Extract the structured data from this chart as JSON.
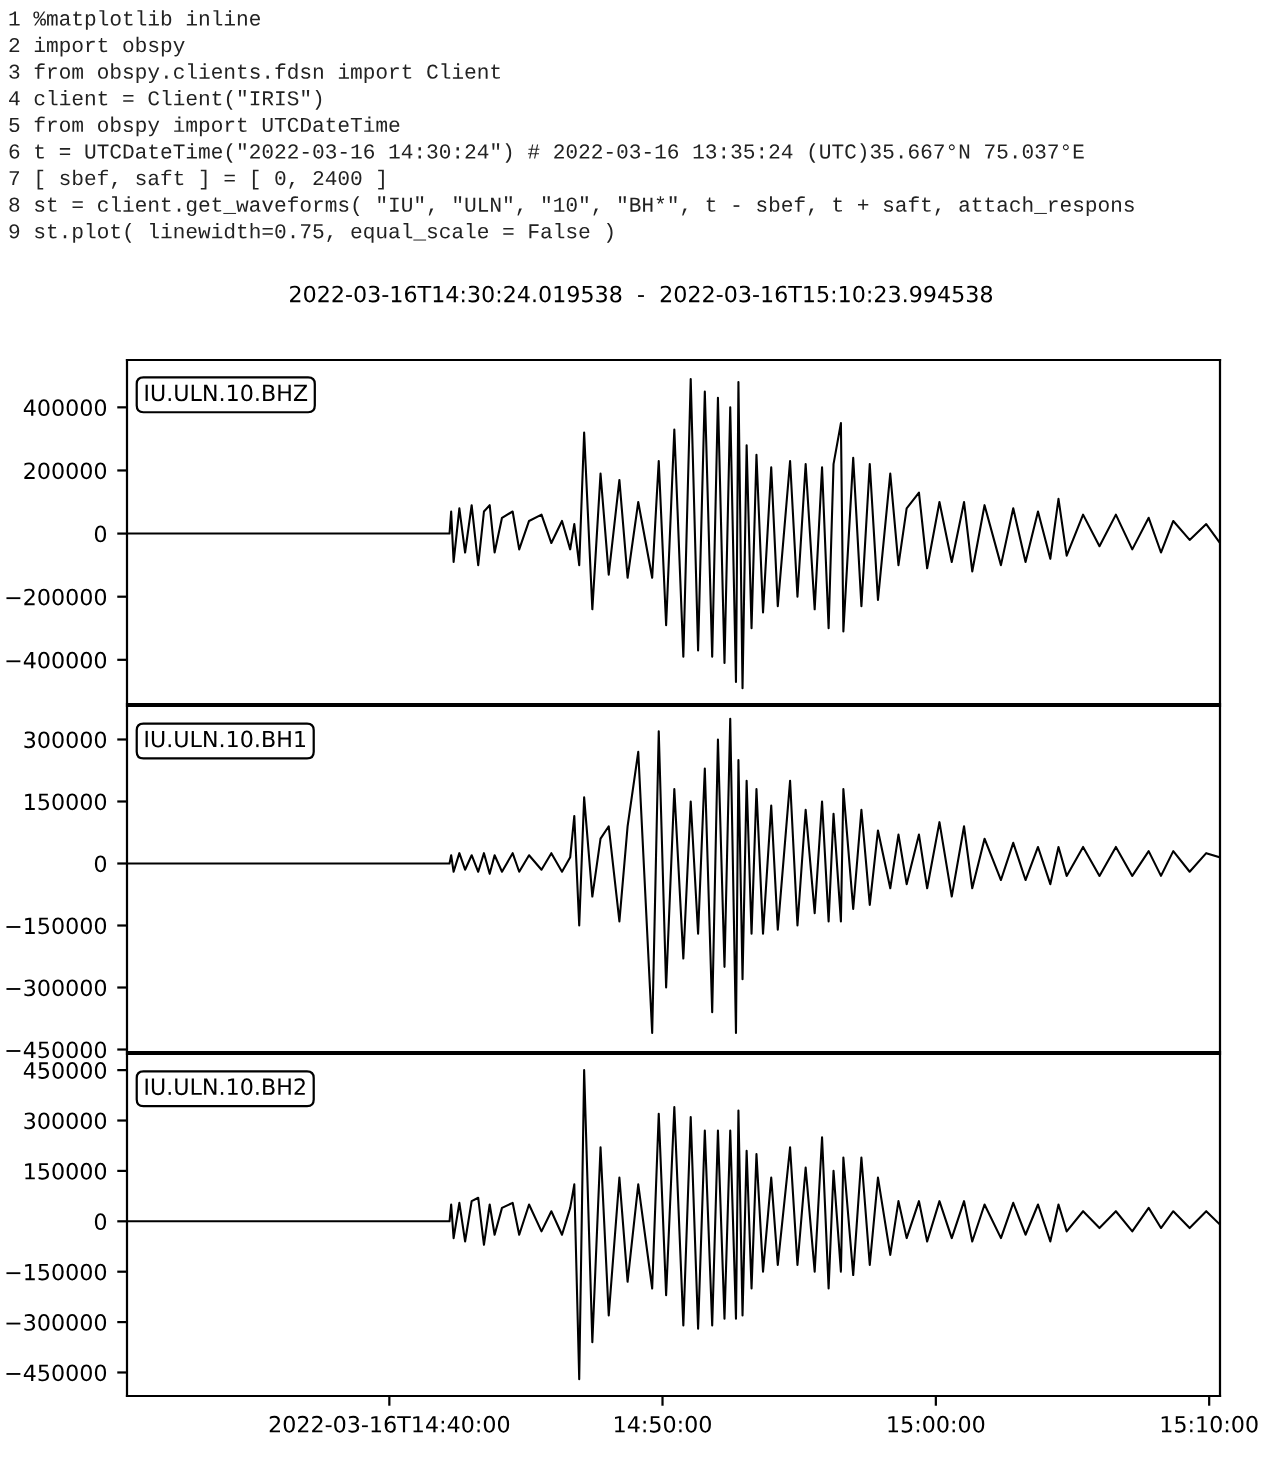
{
  "chart_data": [
    {
      "type": "line",
      "title": "2022-03-16T14:30:24.019538  -  2022-03-16T15:10:23.994538",
      "annotations": [
        "1 %matplotlib inline",
        "2 import obspy",
        "3 from obspy.clients.fdsn import Client",
        "4 client = Client(\"IRIS\")",
        "5 from obspy import UTCDateTime",
        "6 t = UTCDateTime(\"2022-03-16 14:30:24\") # 2022-03-16 13:35:24 (UTC)35.667°N 75.037°E",
        "7 [ sbef, saft ] = [ 0, 2400 ]",
        "8 st = client.get_waveforms( \"IU\", \"ULN\", \"10\", \"BH*\", t - sbef, t + saft, attach_respons",
        "9 st.plot( linewidth=0.75, equal_scale = False )"
      ],
      "x": [
        14.5067,
        14.6684,
        14.7034,
        14.7044,
        14.7059,
        14.7094,
        14.7129,
        14.7169,
        14.7209,
        14.7244,
        14.7279,
        14.7309,
        14.7354,
        14.7419,
        14.7459,
        14.7519,
        14.7595,
        14.7655,
        14.772,
        14.777,
        14.7795,
        14.7825,
        14.7855,
        14.7905,
        14.7955,
        14.8005,
        14.807,
        14.812,
        14.8185,
        14.827,
        14.831,
        14.8355,
        14.8405,
        14.846,
        14.8505,
        14.855,
        14.8591,
        14.8636,
        14.8671,
        14.8711,
        14.8746,
        14.8781,
        14.8796,
        14.8821,
        14.8846,
        14.8876,
        14.8906,
        14.8946,
        14.8996,
        14.9036,
        14.9111,
        14.9156,
        14.9206,
        14.9261,
        14.9306,
        14.9346,
        14.9376,
        14.9421,
        14.9436,
        14.9496,
        14.9546,
        14.9597,
        14.9647,
        14.9722,
        14.9772,
        14.9822,
        14.9897,
        14.9947,
        15.0022,
        15.0097,
        15.0172,
        15.0222,
        15.0297,
        15.0397,
        15.0472,
        15.0547,
        15.0623,
        15.0698,
        15.0748,
        15.0798,
        15.0898,
        15.0998,
        15.1098,
        15.1198,
        15.1298,
        15.1373,
        15.1448,
        15.1548,
        15.1649,
        15.1733
      ],
      "series": [
        {
          "name": "IU.ULN.10.BHZ",
          "color": "#000000",
          "values": [
            0,
            0,
            0,
            70000,
            -90000,
            80000,
            -60000,
            90000,
            -100000,
            70000,
            90000,
            -60000,
            50000,
            70000,
            -50000,
            40000,
            60000,
            -30000,
            40000,
            -50000,
            30000,
            -100000,
            320000,
            -240000,
            190000,
            -130000,
            170000,
            -140000,
            100000,
            -140000,
            230000,
            -290000,
            330000,
            -390000,
            490000,
            -370000,
            450000,
            -390000,
            430000,
            -410000,
            400000,
            -470000,
            480000,
            -490000,
            280000,
            -300000,
            250000,
            -250000,
            210000,
            -230000,
            230000,
            -200000,
            220000,
            -240000,
            210000,
            -300000,
            220000,
            350000,
            -310000,
            240000,
            -230000,
            220000,
            -210000,
            190000,
            -100000,
            80000,
            130000,
            -110000,
            100000,
            -90000,
            100000,
            -120000,
            90000,
            -100000,
            80000,
            -90000,
            70000,
            -80000,
            110000,
            -70000,
            60000,
            -40000,
            60000,
            -50000,
            50000,
            -60000,
            40000,
            -20000,
            30000,
            -30000
          ]
        }
      ],
      "xlim": [
        14.5067,
        15.1733
      ],
      "xticks": [
        {
          "value": 14.6667,
          "label": null
        },
        {
          "value": 14.8333,
          "label": null
        },
        {
          "value": 15.0,
          "label": null
        },
        {
          "value": 15.1667,
          "label": null
        }
      ],
      "ylim": [
        -540000,
        550000
      ],
      "yticks": [
        {
          "value": -400000,
          "label": "−400000"
        },
        {
          "value": -200000,
          "label": "−200000"
        },
        0,
        200000,
        400000
      ],
      "tick_labels": "y",
      "grid": false,
      "legend": false,
      "marker": "none",
      "line_style": "solid"
    },
    {
      "type": "line",
      "x": [
        14.5067,
        14.6684,
        14.7034,
        14.7044,
        14.7059,
        14.7094,
        14.7129,
        14.7169,
        14.7209,
        14.7244,
        14.7279,
        14.7309,
        14.7354,
        14.7419,
        14.7459,
        14.7519,
        14.7595,
        14.7655,
        14.772,
        14.777,
        14.7795,
        14.7825,
        14.7855,
        14.7905,
        14.7955,
        14.8005,
        14.807,
        14.812,
        14.8185,
        14.827,
        14.831,
        14.8355,
        14.8405,
        14.846,
        14.8505,
        14.855,
        14.8591,
        14.8636,
        14.8671,
        14.8711,
        14.8746,
        14.8781,
        14.8796,
        14.8821,
        14.8846,
        14.8876,
        14.8906,
        14.8946,
        14.8996,
        14.9036,
        14.9111,
        14.9156,
        14.9206,
        14.9261,
        14.9306,
        14.9346,
        14.9376,
        14.9421,
        14.9436,
        14.9496,
        14.9546,
        14.9597,
        14.9647,
        14.9722,
        14.9772,
        14.9822,
        14.9897,
        14.9947,
        15.0022,
        15.0097,
        15.0172,
        15.0222,
        15.0297,
        15.0397,
        15.0472,
        15.0547,
        15.0623,
        15.0698,
        15.0748,
        15.0798,
        15.0898,
        15.0998,
        15.1098,
        15.1198,
        15.1298,
        15.1373,
        15.1448,
        15.1548,
        15.1649,
        15.1733
      ],
      "series": [
        {
          "name": "IU.ULN.10.BH1",
          "color": "#000000",
          "values": [
            0,
            0,
            0,
            20000,
            -20000,
            25000,
            -15000,
            20000,
            -20000,
            25000,
            -25000,
            20000,
            -20000,
            25000,
            -20000,
            20000,
            -15000,
            25000,
            -20000,
            15000,
            115000,
            -150000,
            160000,
            -80000,
            60000,
            90000,
            -140000,
            90000,
            270000,
            -410000,
            320000,
            -300000,
            180000,
            -230000,
            150000,
            -170000,
            230000,
            -360000,
            300000,
            -250000,
            350000,
            -410000,
            250000,
            -280000,
            200000,
            -170000,
            180000,
            -170000,
            140000,
            -160000,
            200000,
            -150000,
            130000,
            -120000,
            150000,
            -140000,
            120000,
            -140000,
            180000,
            -110000,
            130000,
            -100000,
            80000,
            -60000,
            70000,
            -50000,
            70000,
            -60000,
            100000,
            -80000,
            90000,
            -60000,
            60000,
            -40000,
            50000,
            -40000,
            40000,
            -50000,
            40000,
            -30000,
            40000,
            -30000,
            40000,
            -30000,
            30000,
            -30000,
            30000,
            -20000,
            25000,
            15000
          ]
        }
      ],
      "xlim": [
        14.5067,
        15.1733
      ],
      "xticks": [
        {
          "value": 14.6667,
          "label": null
        },
        {
          "value": 14.8333,
          "label": null
        },
        {
          "value": 15.0,
          "label": null
        },
        {
          "value": 15.1667,
          "label": null
        }
      ],
      "ylim": [
        -456000,
        381000
      ],
      "yticks": [
        {
          "value": -450000,
          "label": "−450000"
        },
        {
          "value": -300000,
          "label": "−300000"
        },
        {
          "value": -150000,
          "label": "−150000"
        },
        0,
        150000,
        300000
      ],
      "tick_labels": "y",
      "grid": false,
      "legend": false,
      "marker": "none",
      "line_style": "solid"
    },
    {
      "type": "line",
      "x": [
        14.5067,
        14.6684,
        14.7034,
        14.7044,
        14.7059,
        14.7094,
        14.7129,
        14.7169,
        14.7209,
        14.7244,
        14.7279,
        14.7309,
        14.7354,
        14.7419,
        14.7459,
        14.7519,
        14.7595,
        14.7655,
        14.772,
        14.777,
        14.7795,
        14.7825,
        14.7855,
        14.7905,
        14.7955,
        14.8005,
        14.807,
        14.812,
        14.8185,
        14.827,
        14.831,
        14.8355,
        14.8405,
        14.846,
        14.8505,
        14.855,
        14.8591,
        14.8636,
        14.8671,
        14.8711,
        14.8746,
        14.8781,
        14.8796,
        14.8821,
        14.8846,
        14.8876,
        14.8906,
        14.8946,
        14.8996,
        14.9036,
        14.9111,
        14.9156,
        14.9206,
        14.9261,
        14.9306,
        14.9346,
        14.9376,
        14.9421,
        14.9436,
        14.9496,
        14.9546,
        14.9597,
        14.9647,
        14.9722,
        14.9772,
        14.9822,
        14.9897,
        14.9947,
        15.0022,
        15.0097,
        15.0172,
        15.0222,
        15.0297,
        15.0397,
        15.0472,
        15.0547,
        15.0623,
        15.0698,
        15.0748,
        15.0798,
        15.0898,
        15.0998,
        15.1098,
        15.1198,
        15.1298,
        15.1373,
        15.1448,
        15.1548,
        15.1649,
        15.1733
      ],
      "series": [
        {
          "name": "IU.ULN.10.BH2",
          "color": "#000000",
          "values": [
            0,
            0,
            0,
            50000,
            -50000,
            55000,
            -60000,
            60000,
            70000,
            -70000,
            50000,
            -40000,
            40000,
            55000,
            -40000,
            50000,
            -30000,
            30000,
            -40000,
            40000,
            110000,
            -470000,
            450000,
            -360000,
            220000,
            -280000,
            130000,
            -180000,
            110000,
            -200000,
            320000,
            -220000,
            340000,
            -310000,
            310000,
            -320000,
            270000,
            -310000,
            270000,
            -290000,
            270000,
            -290000,
            330000,
            -280000,
            210000,
            -200000,
            200000,
            -150000,
            130000,
            -130000,
            220000,
            -130000,
            160000,
            -150000,
            250000,
            -200000,
            150000,
            -150000,
            190000,
            -160000,
            190000,
            -130000,
            130000,
            -100000,
            60000,
            -50000,
            60000,
            -60000,
            60000,
            -50000,
            60000,
            -60000,
            50000,
            -50000,
            55000,
            -40000,
            50000,
            -60000,
            50000,
            -30000,
            30000,
            -20000,
            30000,
            -30000,
            40000,
            -20000,
            30000,
            -20000,
            30000,
            -10000
          ]
        }
      ],
      "xlim": [
        14.5067,
        15.1733
      ],
      "xticks": [
        {
          "value": 14.6667,
          "label": "2022-03-16T14:40:00"
        },
        {
          "value": 14.8333,
          "label": "14:50:00"
        },
        {
          "value": 15.0,
          "label": "15:00:00"
        },
        {
          "value": 15.1667,
          "label": "15:10:00"
        }
      ],
      "ylim": [
        -520000,
        498000
      ],
      "yticks": [
        {
          "value": -450000,
          "label": "−450000"
        },
        {
          "value": -300000,
          "label": "−300000"
        },
        {
          "value": -150000,
          "label": "−150000"
        },
        0,
        150000,
        300000,
        450000
      ],
      "grid": false,
      "legend": false,
      "marker": "none",
      "line_style": "solid"
    }
  ]
}
